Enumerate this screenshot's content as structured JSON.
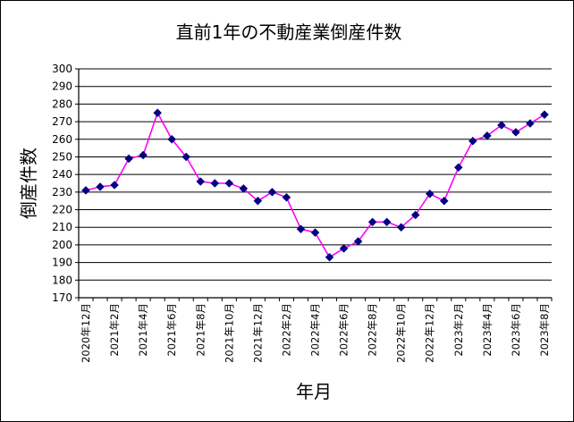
{
  "chart_data": {
    "type": "line",
    "title": "直前1年の不動産業倒産件数",
    "xlabel": "年月",
    "ylabel": "倒産件数",
    "ylim": [
      170,
      300
    ],
    "yticks": [
      170,
      180,
      190,
      200,
      210,
      220,
      230,
      240,
      250,
      260,
      270,
      280,
      290,
      300
    ],
    "grid": true,
    "tick_labels": [
      "2020年12月",
      "2021年2月",
      "2021年4月",
      "2021年6月",
      "2021年8月",
      "2021年10月",
      "2021年12月",
      "2022年2月",
      "2022年4月",
      "2022年6月",
      "2022年8月",
      "2022年10月",
      "2022年12月",
      "2023年2月",
      "2023年4月",
      "2023年6月",
      "2023年8月"
    ],
    "series": [
      {
        "values": [
          231,
          233,
          234,
          249,
          251,
          275,
          260,
          250,
          236,
          235,
          235,
          232,
          225,
          230,
          227,
          209,
          207,
          193,
          198,
          202,
          213,
          213,
          210,
          217,
          229,
          225,
          244,
          259,
          262,
          268,
          264,
          269,
          274
        ]
      }
    ],
    "colors": {
      "line": "#ff00ff",
      "marker": "#000080",
      "grid": "#000000"
    }
  }
}
